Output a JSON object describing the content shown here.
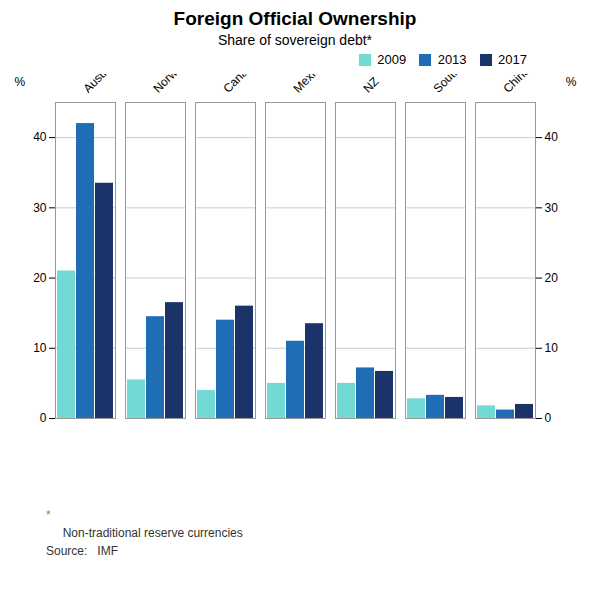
{
  "chart_data": {
    "type": "bar",
    "title": "Foreign Official Ownership",
    "subtitle": "Share of sovereign debt*",
    "categories": [
      "Australia",
      "Norway",
      "Canada",
      "Mexico",
      "NZ",
      "South Korea",
      "China"
    ],
    "series": [
      {
        "name": "2009",
        "color": "#72d9d4",
        "values": [
          21,
          5.5,
          4,
          5,
          5,
          2.8,
          1.8
        ]
      },
      {
        "name": "2013",
        "color": "#1f6eb5",
        "values": [
          42,
          14.5,
          14,
          11,
          7.2,
          3.3,
          1.2
        ]
      },
      {
        "name": "2017",
        "color": "#1a3368",
        "values": [
          33.5,
          16.5,
          16,
          13.5,
          6.7,
          3.0,
          2.0
        ]
      }
    ],
    "ylim": [
      0,
      45
    ],
    "yticks": [
      0,
      10,
      20,
      30,
      40
    ],
    "y2lim": [
      0,
      45
    ],
    "y2ticks": [
      0,
      10,
      20,
      30,
      40
    ],
    "ylabel": "%",
    "y2label": "%",
    "grid": true,
    "legend": "upper right",
    "annotations": [
      {
        "text": "*",
        "color": "#c07820"
      },
      {
        "text": "     Non-traditional reserve currencies",
        "color": "#333333"
      },
      {
        "text": "Source:   IMF",
        "color": "#333333"
      }
    ]
  }
}
